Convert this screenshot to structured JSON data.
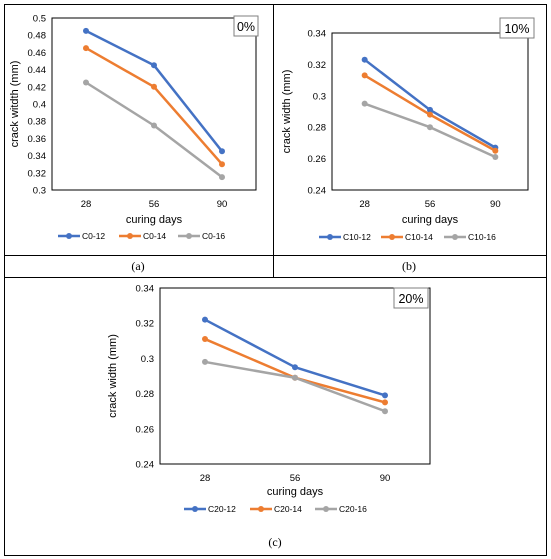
{
  "chart_data": [
    {
      "type": "line",
      "tag": "0%",
      "caption": "(a)",
      "xlabel": "curing days",
      "ylabel": "crack witdth (mm)",
      "categories": [
        "28",
        "56",
        "90"
      ],
      "ylim": [
        0.3,
        0.5
      ],
      "yticks": [
        "0.3",
        "0.32",
        "0.34",
        "0.36",
        "0.38",
        "0.4",
        "0.42",
        "0.44",
        "0.46",
        "0.48",
        "0.5"
      ],
      "grid": false,
      "legend": "bottom",
      "series": [
        {
          "name": "C0-12",
          "color": "#4472C4",
          "values": [
            0.485,
            0.445,
            0.345
          ]
        },
        {
          "name": "C0-14",
          "color": "#ED7D31",
          "values": [
            0.465,
            0.42,
            0.33
          ]
        },
        {
          "name": "C0-16",
          "color": "#A5A5A5",
          "values": [
            0.425,
            0.375,
            0.315
          ]
        }
      ]
    },
    {
      "type": "line",
      "tag": "10%",
      "caption": "(b)",
      "xlabel": "curing days",
      "ylabel": "crack width (mm)",
      "categories": [
        "28",
        "56",
        "90"
      ],
      "ylim": [
        0.24,
        0.34
      ],
      "yticks": [
        "0.24",
        "0.26",
        "0.28",
        "0.3",
        "0.32",
        "0.34"
      ],
      "grid": false,
      "legend": "bottom",
      "series": [
        {
          "name": "C10-12",
          "color": "#4472C4",
          "values": [
            0.323,
            0.291,
            0.267
          ]
        },
        {
          "name": "C10-14",
          "color": "#ED7D31",
          "values": [
            0.313,
            0.288,
            0.265
          ]
        },
        {
          "name": "C10-16",
          "color": "#A5A5A5",
          "values": [
            0.295,
            0.28,
            0.261
          ]
        }
      ]
    },
    {
      "type": "line",
      "tag": "20%",
      "caption": "(c)",
      "xlabel": "curing days",
      "ylabel": "crack width (mm)",
      "categories": [
        "28",
        "56",
        "90"
      ],
      "ylim": [
        0.24,
        0.34
      ],
      "yticks": [
        "0.24",
        "0.26",
        "0.28",
        "0.3",
        "0.32",
        "0.34"
      ],
      "grid": false,
      "legend": "bottom",
      "series": [
        {
          "name": "C20-12",
          "color": "#4472C4",
          "values": [
            0.322,
            0.295,
            0.279
          ]
        },
        {
          "name": "C20-14",
          "color": "#ED7D31",
          "values": [
            0.311,
            0.289,
            0.275
          ]
        },
        {
          "name": "C20-16",
          "color": "#A5A5A5",
          "values": [
            0.298,
            0.289,
            0.27
          ]
        }
      ]
    }
  ]
}
